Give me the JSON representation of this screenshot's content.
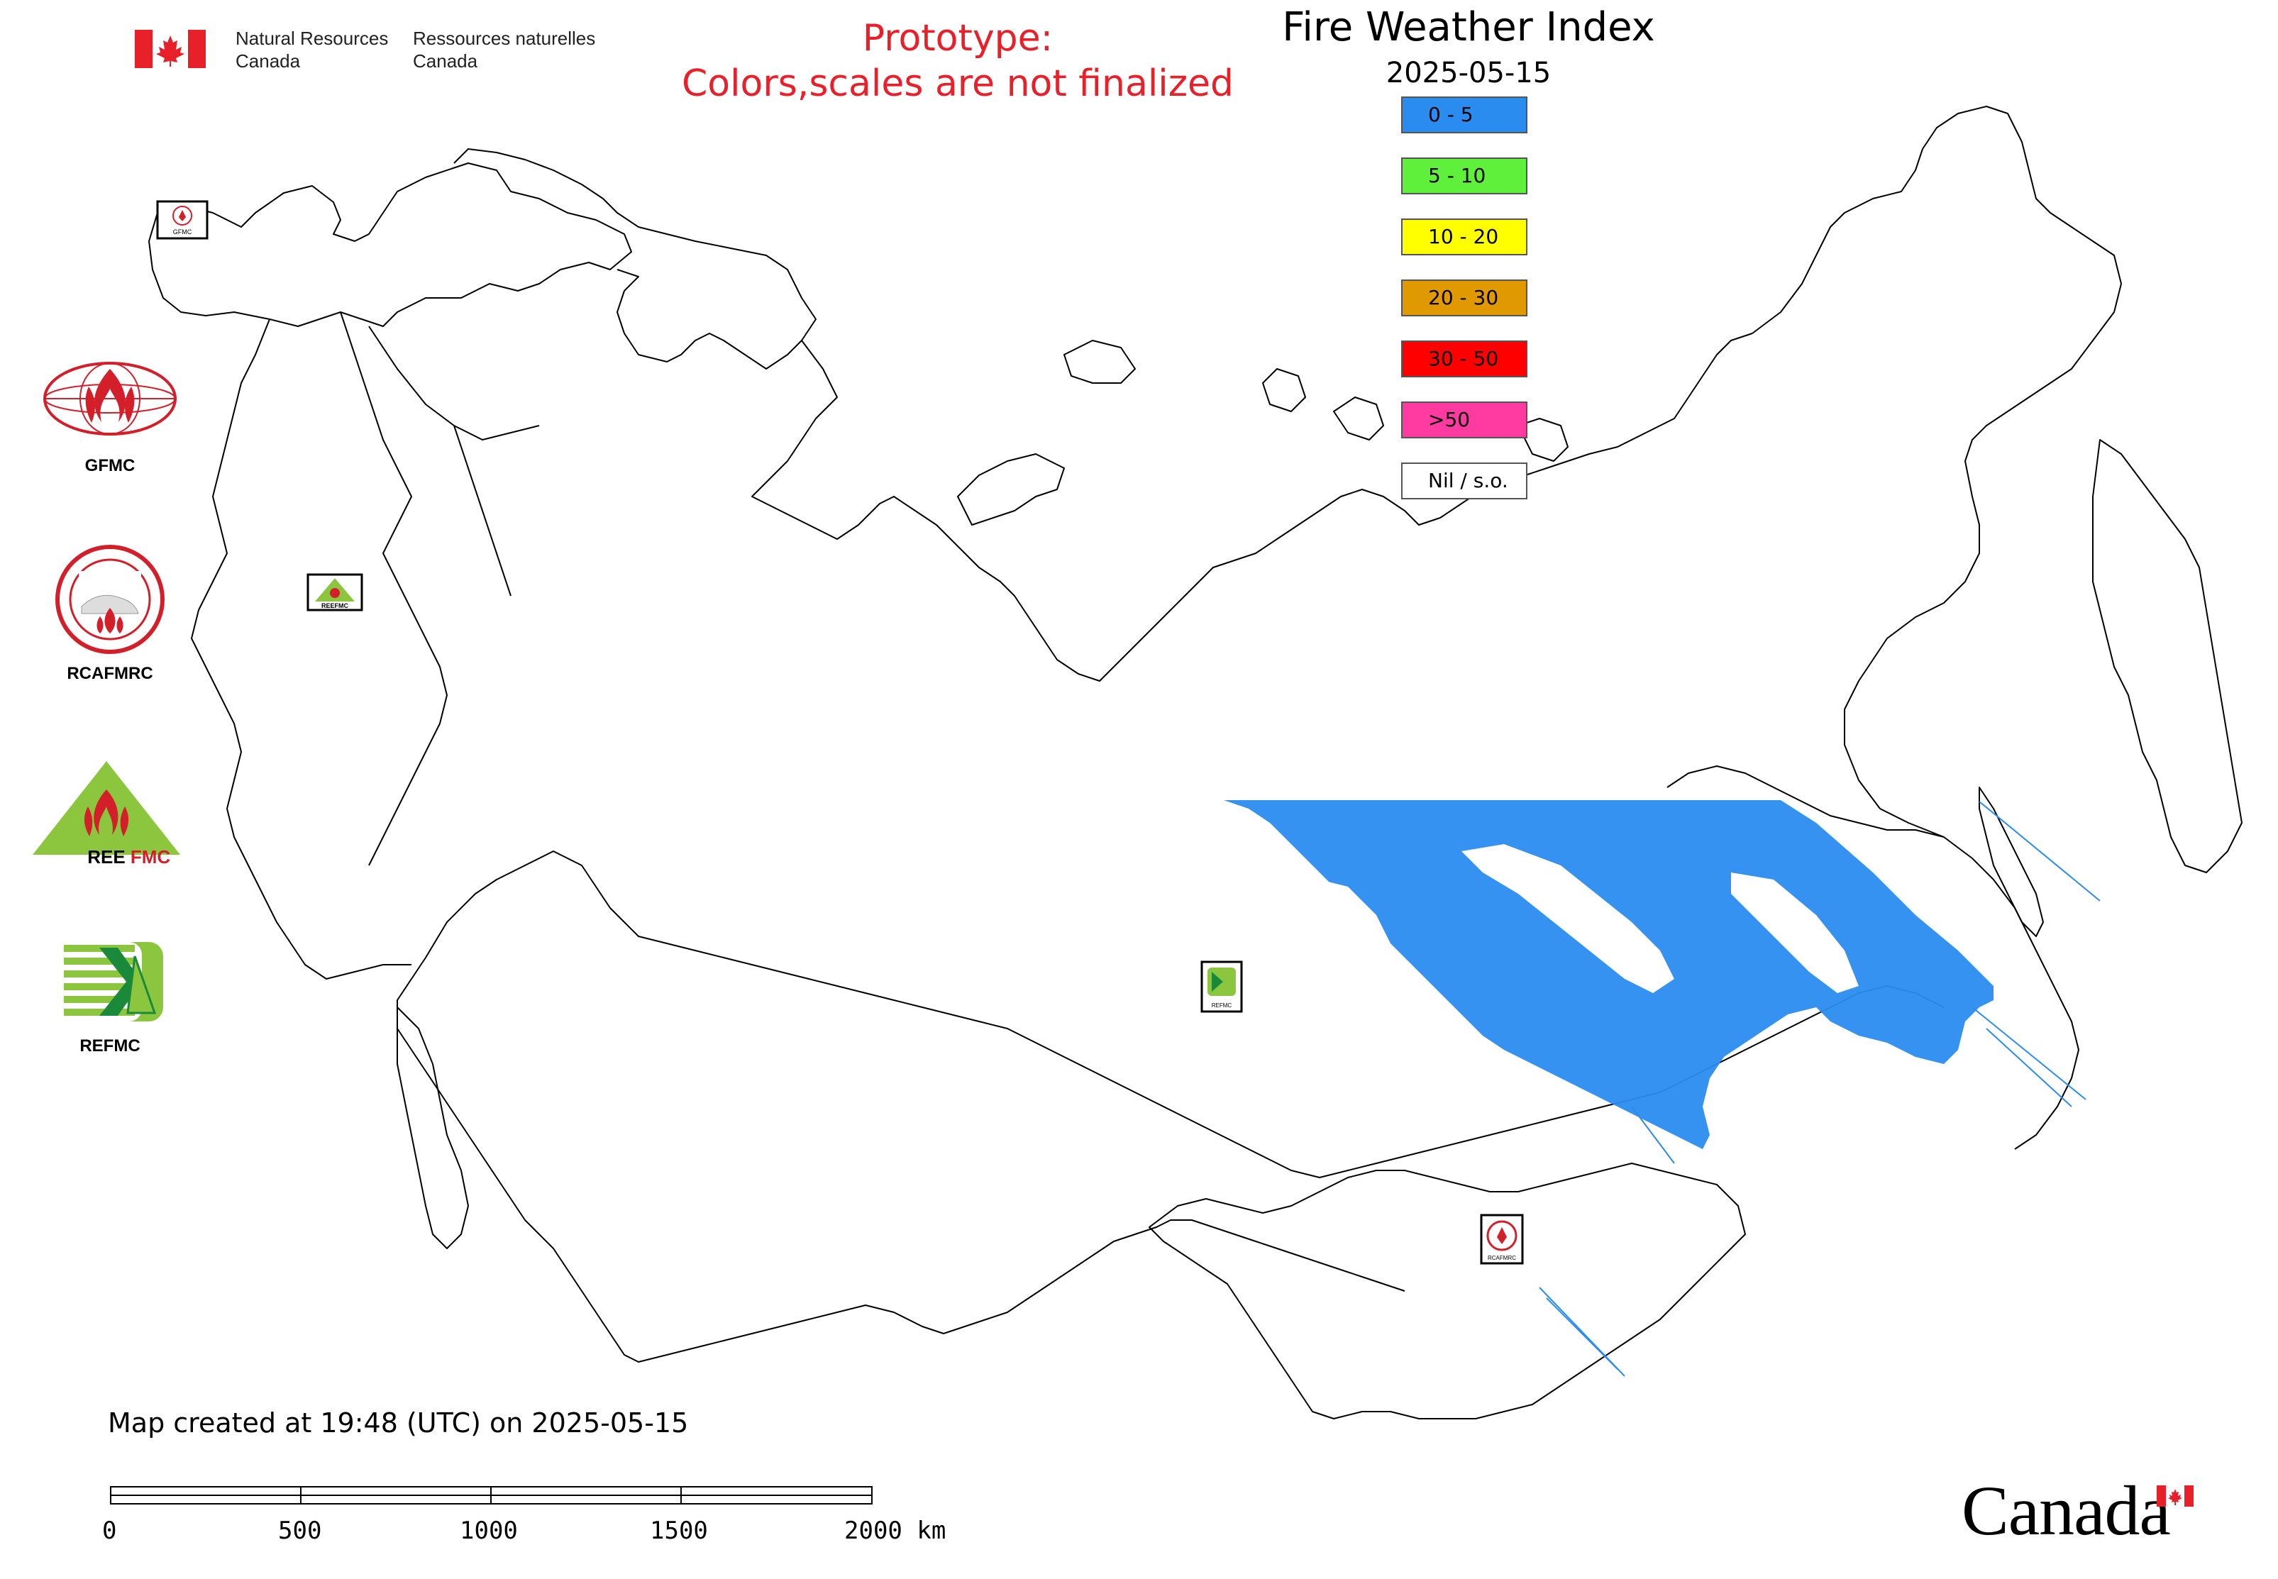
{
  "header": {
    "department_en_line1": "Natural Resources",
    "department_en_line2": "Canada",
    "department_fr_line1": "Ressources naturelles",
    "department_fr_line2": "Canada",
    "prototype_line1": "Prototype:",
    "prototype_line2": "Colors,scales are not finalized",
    "prototype_color": "#e8202a"
  },
  "map": {
    "title": "Fire Weather Index",
    "date": "2025-05-15",
    "region_icons": [
      "GFMC",
      "REEFMC",
      "REFMC",
      "RCAFMRC"
    ]
  },
  "legend": {
    "items": [
      {
        "label": "0 - 5",
        "color": "#2b8cf0"
      },
      {
        "label": "5 - 10",
        "color": "#5ef03a"
      },
      {
        "label": "10 - 20",
        "color": "#ffff00"
      },
      {
        "label": "20 - 30",
        "color": "#e09a00"
      },
      {
        "label": "30 - 50",
        "color": "#ff0000"
      },
      {
        "label": ">50",
        "color": "#ff3aa0"
      },
      {
        "label": "Nil / s.o.",
        "color": "#ffffff"
      }
    ]
  },
  "logos": [
    {
      "label": "GFMC",
      "icon": "gfmc-logo"
    },
    {
      "label": "RCAFMRC",
      "icon": "rcafmrc-logo"
    },
    {
      "label": "REEFMC",
      "icon": "reefmc-logo"
    },
    {
      "label": "REFMC",
      "icon": "refmc-logo"
    }
  ],
  "footer": {
    "credit": "Map created at 19:48 (UTC) on 2025-05-15",
    "scale_labels": [
      "0",
      "500",
      "1000",
      "1500",
      "2000 km"
    ],
    "wordmark": "Canada"
  }
}
